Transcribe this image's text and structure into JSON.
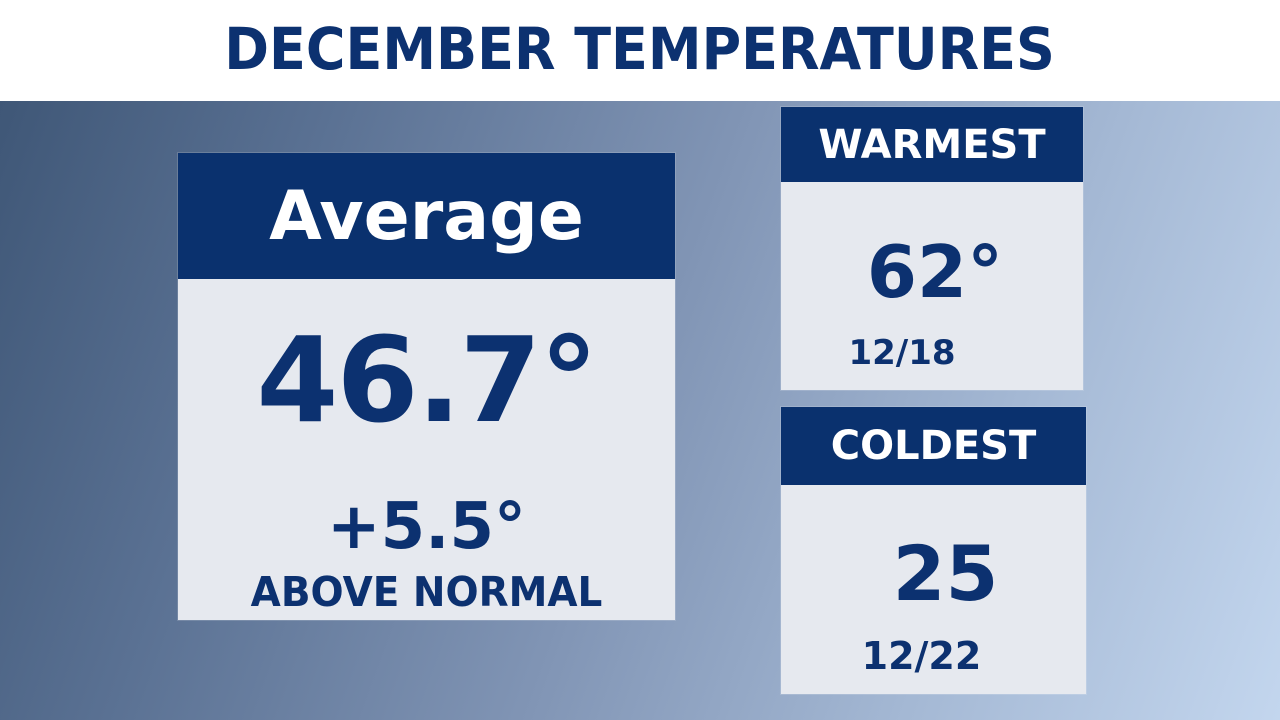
{
  "header": {
    "title": "DECEMBER TEMPERATURES"
  },
  "colors": {
    "navy": "#0a316e",
    "card_bg": "#e6e9ef",
    "gradient_start": "#3f5777",
    "gradient_end": "#c3d6ee"
  },
  "average": {
    "label": "Average",
    "value": "46.7°",
    "departure": "+5.5°",
    "departure_label": "ABOVE NORMAL"
  },
  "warmest": {
    "label": "WARMEST",
    "value": "62°",
    "date": "12/18"
  },
  "coldest": {
    "label": "COLDEST",
    "value": "25",
    "date": "12/22"
  }
}
